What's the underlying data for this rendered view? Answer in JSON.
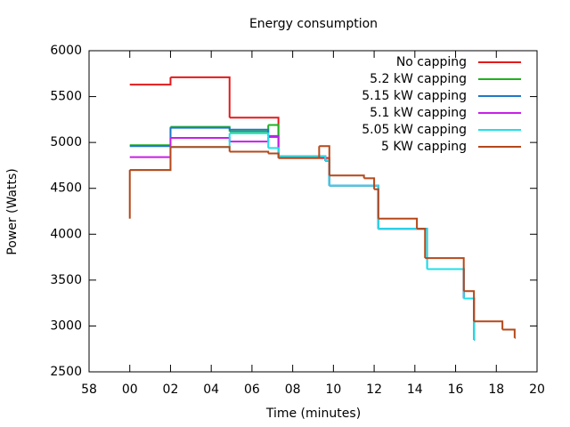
{
  "chart_data": {
    "type": "step",
    "title": "Energy consumption",
    "x_label": "Time (minutes)",
    "y_label": "Power (Watts)",
    "xlim": [
      -2,
      20
    ],
    "xticks": [
      {
        "value": -2,
        "label": "58"
      },
      {
        "value": 0,
        "label": "00"
      },
      {
        "value": 2,
        "label": "02"
      },
      {
        "value": 4,
        "label": "04"
      },
      {
        "value": 6,
        "label": "06"
      },
      {
        "value": 8,
        "label": "08"
      },
      10,
      12,
      14,
      16,
      18,
      20
    ],
    "ylim": [
      2500,
      6000
    ],
    "yticks": [
      2500,
      3000,
      3500,
      4000,
      4500,
      5000,
      5500,
      6000
    ],
    "legend": "top-right",
    "series": [
      {
        "name": "No capping",
        "color": "#e31a1c",
        "x": [
          0,
          2,
          4.9,
          7.3,
          9.8,
          12.2,
          14.6,
          16.4,
          16.9
        ],
        "values": [
          5630,
          5710,
          5270,
          4830,
          4530,
          4060,
          3620,
          3300,
          2850
        ]
      },
      {
        "name": "5.2 kW capping",
        "color": "#1fb01f",
        "x": [
          0,
          2,
          4.9,
          6.8,
          7.3,
          9.6,
          9.8,
          12.2,
          14.6,
          16.4,
          16.9
        ],
        "values": [
          4970,
          5170,
          5120,
          5190,
          4850,
          4800,
          4530,
          4060,
          3620,
          3300,
          2850
        ]
      },
      {
        "name": "5.15 kW capping",
        "color": "#1f78c8",
        "x": [
          0,
          2,
          4.9,
          6.8,
          7.3,
          9.6,
          9.8,
          12.2,
          14.6,
          16.4,
          16.9
        ],
        "values": [
          4960,
          5160,
          5140,
          5070,
          4850,
          4800,
          4530,
          4060,
          3620,
          3300,
          2850
        ]
      },
      {
        "name": "5.1 kW capping",
        "color": "#c81fe8",
        "x": [
          0,
          2,
          4.9,
          6.8,
          7.3,
          9.6,
          9.8,
          12.2,
          14.6,
          16.4,
          16.9
        ],
        "values": [
          4840,
          5050,
          5010,
          5060,
          4850,
          4800,
          4530,
          4060,
          3620,
          3300,
          2850
        ]
      },
      {
        "name": "5.05 kW capping",
        "color": "#1fe0e8",
        "x": [
          0,
          2,
          4.9,
          6.8,
          7.3,
          9.6,
          9.8,
          12.2,
          14.6,
          16.4,
          16.9
        ],
        "values": [
          4700,
          4950,
          5100,
          4940,
          4850,
          4800,
          4530,
          4060,
          3620,
          3300,
          2850
        ]
      },
      {
        "name": "5 KW capping",
        "color": "#b5481a",
        "x": [
          0,
          0,
          2,
          4.9,
          6.8,
          7.3,
          9.3,
          9.8,
          11.5,
          12,
          12.2,
          14.1,
          14.5,
          16.4,
          16.9,
          18.3,
          18.9
        ],
        "values": [
          4170,
          4700,
          4950,
          4900,
          4880,
          4830,
          4960,
          4640,
          4610,
          4490,
          4170,
          4060,
          3740,
          3380,
          3050,
          2960,
          2870
        ]
      }
    ]
  }
}
